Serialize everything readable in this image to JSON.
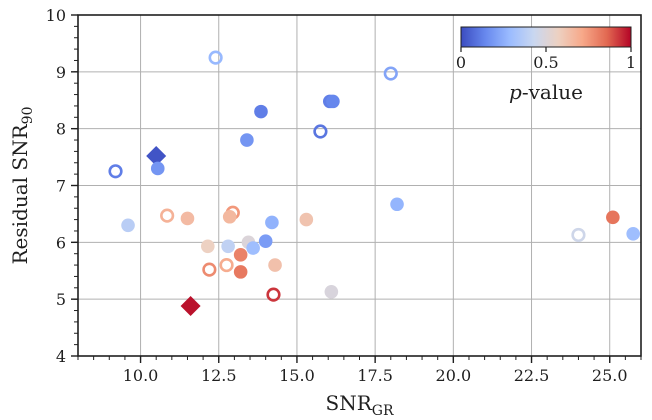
{
  "chart_data": {
    "type": "scatter",
    "xlabel": "SNR",
    "xlabel_sub": "GR",
    "ylabel": "Residual SNR",
    "ylabel_sub": "90",
    "xlim": [
      8,
      26
    ],
    "ylim": [
      4,
      10
    ],
    "xticks": [
      10.0,
      12.5,
      15.0,
      17.5,
      20.0,
      22.5,
      25.0
    ],
    "xtick_labels": [
      "10.0",
      "12.5",
      "15.0",
      "17.5",
      "20.0",
      "22.5",
      "25.0"
    ],
    "yticks": [
      4,
      5,
      6,
      7,
      8,
      9,
      10
    ],
    "ytick_labels": [
      "4",
      "5",
      "6",
      "7",
      "8",
      "9",
      "10"
    ],
    "grid": true,
    "colorbar": {
      "label_prefix": "p",
      "label_suffix": "-value",
      "range": [
        0,
        1
      ],
      "ticks": [
        0,
        0.5,
        1
      ],
      "tick_labels": [
        "0",
        "0.5",
        "1"
      ],
      "placement": "top-right",
      "colormap": [
        "#3b4cc0",
        "#6788ee",
        "#9abbff",
        "#c9d7f0",
        "#edd1c2",
        "#f7a889",
        "#e26952",
        "#b40426"
      ]
    },
    "points": [
      {
        "x": 10.5,
        "y": 7.52,
        "p": 0.02,
        "marker": "diamond",
        "filled": true
      },
      {
        "x": 11.6,
        "y": 4.88,
        "p": 0.98,
        "marker": "diamond",
        "filled": true
      },
      {
        "x": 9.2,
        "y": 7.25,
        "p": 0.12,
        "marker": "circle",
        "filled": false
      },
      {
        "x": 10.55,
        "y": 7.3,
        "p": 0.18,
        "marker": "circle",
        "filled": true
      },
      {
        "x": 9.6,
        "y": 6.3,
        "p": 0.38,
        "marker": "circle",
        "filled": true
      },
      {
        "x": 12.4,
        "y": 9.25,
        "p": 0.28,
        "marker": "circle",
        "filled": false
      },
      {
        "x": 13.85,
        "y": 8.3,
        "p": 0.12,
        "marker": "circle",
        "filled": true
      },
      {
        "x": 13.4,
        "y": 7.8,
        "p": 0.18,
        "marker": "circle",
        "filled": true
      },
      {
        "x": 16.05,
        "y": 8.48,
        "p": 0.12,
        "marker": "circle",
        "filled": true
      },
      {
        "x": 16.15,
        "y": 8.48,
        "p": 0.14,
        "marker": "circle",
        "filled": true
      },
      {
        "x": 15.75,
        "y": 7.95,
        "p": 0.1,
        "marker": "circle",
        "filled": false
      },
      {
        "x": 18.0,
        "y": 8.97,
        "p": 0.22,
        "marker": "circle",
        "filled": false
      },
      {
        "x": 18.2,
        "y": 6.67,
        "p": 0.27,
        "marker": "circle",
        "filled": true
      },
      {
        "x": 10.85,
        "y": 6.47,
        "p": 0.68,
        "marker": "circle",
        "filled": false
      },
      {
        "x": 11.5,
        "y": 6.42,
        "p": 0.65,
        "marker": "circle",
        "filled": true
      },
      {
        "x": 12.95,
        "y": 6.52,
        "p": 0.75,
        "marker": "circle",
        "filled": false
      },
      {
        "x": 12.85,
        "y": 6.45,
        "p": 0.66,
        "marker": "circle",
        "filled": true
      },
      {
        "x": 14.2,
        "y": 6.35,
        "p": 0.26,
        "marker": "circle",
        "filled": true
      },
      {
        "x": 15.3,
        "y": 6.4,
        "p": 0.62,
        "marker": "circle",
        "filled": true
      },
      {
        "x": 12.15,
        "y": 5.93,
        "p": 0.57,
        "marker": "circle",
        "filled": true
      },
      {
        "x": 12.8,
        "y": 5.93,
        "p": 0.4,
        "marker": "circle",
        "filled": true
      },
      {
        "x": 13.45,
        "y": 6.0,
        "p": 0.5,
        "marker": "circle",
        "filled": true
      },
      {
        "x": 13.6,
        "y": 5.9,
        "p": 0.3,
        "marker": "circle",
        "filled": true
      },
      {
        "x": 14.0,
        "y": 6.02,
        "p": 0.2,
        "marker": "circle",
        "filled": true
      },
      {
        "x": 12.2,
        "y": 5.52,
        "p": 0.78,
        "marker": "circle",
        "filled": false
      },
      {
        "x": 12.75,
        "y": 5.6,
        "p": 0.7,
        "marker": "circle",
        "filled": false
      },
      {
        "x": 13.2,
        "y": 5.78,
        "p": 0.8,
        "marker": "circle",
        "filled": true
      },
      {
        "x": 13.2,
        "y": 5.48,
        "p": 0.82,
        "marker": "circle",
        "filled": true
      },
      {
        "x": 14.3,
        "y": 5.6,
        "p": 0.63,
        "marker": "circle",
        "filled": true
      },
      {
        "x": 14.25,
        "y": 5.08,
        "p": 0.93,
        "marker": "circle",
        "filled": false
      },
      {
        "x": 16.1,
        "y": 5.13,
        "p": 0.49,
        "marker": "circle",
        "filled": true
      },
      {
        "x": 24.0,
        "y": 6.13,
        "p": 0.45,
        "marker": "circle",
        "filled": false
      },
      {
        "x": 25.1,
        "y": 6.44,
        "p": 0.83,
        "marker": "circle",
        "filled": true
      },
      {
        "x": 25.75,
        "y": 6.15,
        "p": 0.3,
        "marker": "circle",
        "filled": true
      }
    ]
  }
}
